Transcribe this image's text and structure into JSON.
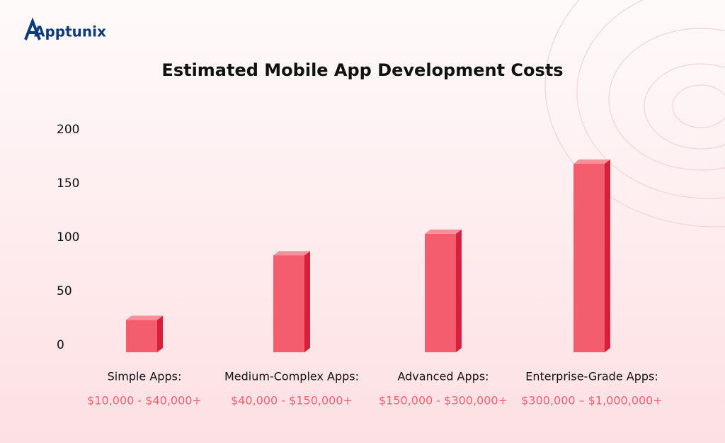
{
  "brand": "Apptunix",
  "chart_data": {
    "type": "bar3d",
    "title": "Estimated Mobile App Development Costs",
    "categories": [
      "Simple Apps:",
      "Medium-Complex Apps:",
      "Advanced Apps:",
      "Enterprise-Grade Apps:"
    ],
    "ranges": [
      "$10,000 - $40,000+",
      "$40,000 - $150,000+",
      "$150,000 - $300,000+",
      "$300,000 – $1,000,000+"
    ],
    "values": [
      30,
      90,
      110,
      175
    ],
    "color": "#f45d6e",
    "side_color": "#d91f3a",
    "top_color": "#f7909a",
    "range_color": "#f0606f",
    "ylim": [
      0,
      200
    ],
    "yticks": [
      0,
      50,
      100,
      150,
      200
    ],
    "grid": false
  }
}
